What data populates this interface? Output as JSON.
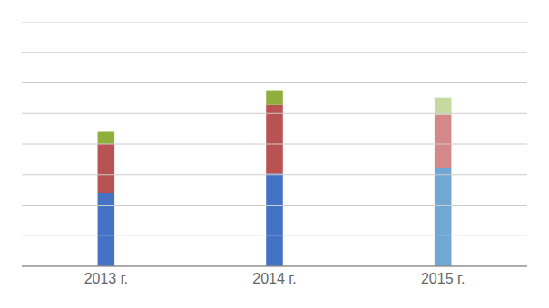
{
  "chart_data": {
    "type": "bar",
    "stacked": true,
    "categories": [
      "2013 г.",
      "2014 г.",
      "2015 г."
    ],
    "series": [
      {
        "values": [
          30,
          38,
          40
        ],
        "colors": [
          "#4472C4",
          "#4472C4",
          "#6FA8D5"
        ]
      },
      {
        "values": [
          20,
          28,
          22
        ],
        "colors": [
          "#B95252",
          "#B95252",
          "#D4888A"
        ]
      },
      {
        "values": [
          5,
          6,
          7
        ],
        "colors": [
          "#8FAF3C",
          "#8FAF3C",
          "#C6D9A0"
        ]
      }
    ],
    "ylim": [
      0,
      100
    ],
    "yticks": [
      0,
      12.5,
      25,
      37.5,
      50,
      62.5,
      75,
      87.5,
      100
    ],
    "grid": true,
    "tick_labels": "x"
  }
}
